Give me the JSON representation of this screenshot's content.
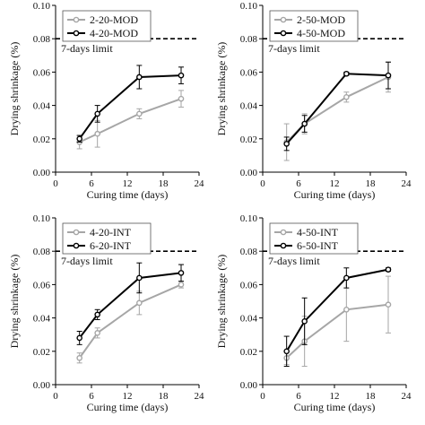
{
  "chart_data": [
    {
      "type": "line",
      "xlabel": "Curing time (days)",
      "ylabel": "Drying shrinkage (%)",
      "xlim": [
        0,
        24
      ],
      "ylim": [
        0,
        0.1
      ],
      "xticks": [
        "0",
        "6",
        "12",
        "18",
        "24"
      ],
      "yticks": [
        "0.00",
        "0.02",
        "0.04",
        "0.06",
        "0.08",
        "0.10"
      ],
      "limit": {
        "value": 0.08,
        "label": "7-days limit"
      },
      "legend_position": "top-left",
      "series": [
        {
          "name": "2-20-MOD",
          "color": "#a6a6a6",
          "marker": "open-circle",
          "x": [
            4,
            7,
            14,
            21
          ],
          "y": [
            0.018,
            0.023,
            0.035,
            0.044
          ],
          "err": [
            0.004,
            0.008,
            0.003,
            0.005
          ]
        },
        {
          "name": "4-20-MOD",
          "color": "#000000",
          "marker": "open-circle",
          "x": [
            4,
            7,
            14,
            21
          ],
          "y": [
            0.02,
            0.035,
            0.057,
            0.058
          ],
          "err": [
            0.002,
            0.005,
            0.007,
            0.005
          ]
        }
      ]
    },
    {
      "type": "line",
      "xlabel": "Curing time (days)",
      "ylabel": "Drying shrinkage (%)",
      "xlim": [
        0,
        24
      ],
      "ylim": [
        0,
        0.1
      ],
      "xticks": [
        "0",
        "6",
        "12",
        "18",
        "24"
      ],
      "yticks": [
        "0.00",
        "0.02",
        "0.04",
        "0.06",
        "0.08",
        "0.10"
      ],
      "limit": {
        "value": 0.08,
        "label": "7-days limit"
      },
      "legend_position": "top-left",
      "series": [
        {
          "name": "2-50-MOD",
          "color": "#a6a6a6",
          "marker": "open-circle",
          "x": [
            4,
            7,
            14,
            21
          ],
          "y": [
            0.018,
            0.029,
            0.045,
            0.057
          ],
          "err": [
            0.011,
            0.006,
            0.003,
            0.009
          ]
        },
        {
          "name": "4-50-MOD",
          "color": "#000000",
          "marker": "open-circle",
          "x": [
            4,
            7,
            14,
            21
          ],
          "y": [
            0.017,
            0.029,
            0.059,
            0.058
          ],
          "err": [
            0.004,
            0.005,
            0.001,
            0.008
          ]
        }
      ]
    },
    {
      "type": "line",
      "xlabel": "Curing time (days)",
      "ylabel": "Drying shrinkage (%)",
      "xlim": [
        0,
        24
      ],
      "ylim": [
        0,
        0.1
      ],
      "xticks": [
        "0",
        "6",
        "12",
        "18",
        "24"
      ],
      "yticks": [
        "0.00",
        "0.02",
        "0.04",
        "0.06",
        "0.08",
        "0.10"
      ],
      "limit": {
        "value": 0.08,
        "label": "7-days limit"
      },
      "legend_position": "top-left",
      "series": [
        {
          "name": "4-20-INT",
          "color": "#a6a6a6",
          "marker": "open-circle",
          "x": [
            4,
            7,
            14,
            21
          ],
          "y": [
            0.016,
            0.031,
            0.049,
            0.06
          ],
          "err": [
            0.003,
            0.003,
            0.007,
            0.002
          ]
        },
        {
          "name": "6-20-INT",
          "color": "#000000",
          "marker": "open-circle",
          "x": [
            4,
            7,
            14,
            21
          ],
          "y": [
            0.028,
            0.042,
            0.064,
            0.067
          ],
          "err": [
            0.004,
            0.003,
            0.009,
            0.005
          ]
        }
      ]
    },
    {
      "type": "line",
      "xlabel": "Curing time (days)",
      "ylabel": "Drying shrinkage (%)",
      "xlim": [
        0,
        24
      ],
      "ylim": [
        0,
        0.1
      ],
      "xticks": [
        "0",
        "6",
        "12",
        "18",
        "24"
      ],
      "yticks": [
        "0.00",
        "0.02",
        "0.04",
        "0.06",
        "0.08",
        "0.10"
      ],
      "limit": {
        "value": 0.08,
        "label": "7-days limit"
      },
      "legend_position": "top-left",
      "series": [
        {
          "name": "4-50-INT",
          "color": "#a6a6a6",
          "marker": "open-circle",
          "x": [
            4,
            7,
            14,
            21
          ],
          "y": [
            0.016,
            0.026,
            0.045,
            0.048
          ],
          "err": [
            0.004,
            0.015,
            0.019,
            0.017
          ]
        },
        {
          "name": "6-50-INT",
          "color": "#000000",
          "marker": "open-circle",
          "x": [
            4,
            7,
            14,
            21
          ],
          "y": [
            0.02,
            0.038,
            0.064,
            0.069
          ],
          "err": [
            0.009,
            0.014,
            0.006,
            0.001
          ]
        }
      ]
    }
  ]
}
